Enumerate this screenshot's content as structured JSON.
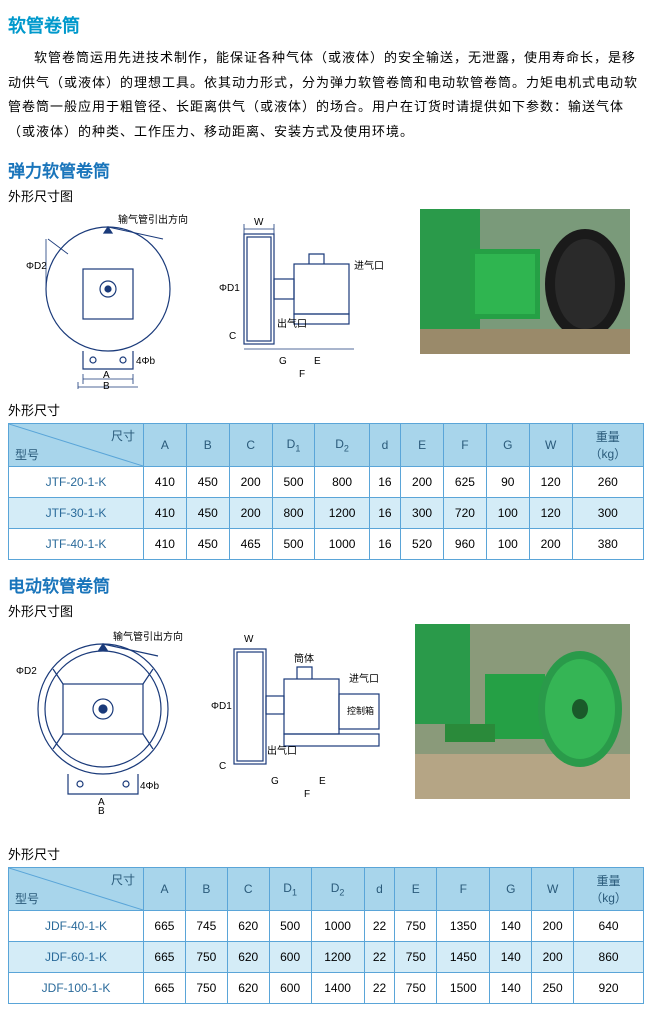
{
  "title": "软管卷筒",
  "intro": "软管卷筒运用先进技术制作，能保证各种气体（或液体）的安全输送，无泄露，使用寿命长，是移动供气（或液体）的理想工具。依其动力形式，分为弹力软管卷筒和电动软管卷筒。力矩电机式电动软管卷筒一般应用于粗管径、长距离供气（或液体）的场合。用户在订货时请提供如下参数：输送气体（或液体）的种类、工作压力、移动距离、安装方式及使用环境。",
  "section1_title": "弹力软管卷筒",
  "section2_title": "电动软管卷筒",
  "dim_diagram_label": "外形尺寸图",
  "dim_table_label": "外形尺寸",
  "table_header_top": "尺寸",
  "table_header_bot": "型号",
  "columns": [
    "A",
    "B",
    "C",
    "D₁",
    "D₂",
    "d",
    "E",
    "F",
    "G",
    "W",
    "重量（kg）"
  ],
  "diagram_labels": {
    "front_annot": "输气管引出方向",
    "phi_d2": "ΦD2",
    "phi_d1": "ΦD1",
    "A": "A",
    "B": "B",
    "C": "C",
    "E": "E",
    "F": "F",
    "G": "G",
    "W": "W",
    "hole": "4Φb",
    "inlet": "进气口",
    "outlet": "出气口",
    "body": "筒体",
    "ctrl": "控制箱"
  },
  "table1_rows": [
    {
      "model": "JTF-20-1-K",
      "v": [
        "410",
        "450",
        "200",
        "500",
        "800",
        "16",
        "200",
        "625",
        "90",
        "120",
        "260"
      ],
      "hl": false
    },
    {
      "model": "JTF-30-1-K",
      "v": [
        "410",
        "450",
        "200",
        "800",
        "1200",
        "16",
        "300",
        "720",
        "100",
        "120",
        "300"
      ],
      "hl": true
    },
    {
      "model": "JTF-40-1-K",
      "v": [
        "410",
        "450",
        "465",
        "500",
        "1000",
        "16",
        "520",
        "960",
        "100",
        "200",
        "380"
      ],
      "hl": false
    }
  ],
  "table2_rows": [
    {
      "model": "JDF-40-1-K",
      "v": [
        "665",
        "745",
        "620",
        "500",
        "1000",
        "22",
        "750",
        "1350",
        "140",
        "200",
        "640"
      ],
      "hl": false
    },
    {
      "model": "JDF-60-1-K",
      "v": [
        "665",
        "750",
        "620",
        "600",
        "1200",
        "22",
        "750",
        "1450",
        "140",
        "200",
        "860"
      ],
      "hl": true
    },
    {
      "model": "JDF-100-1-K",
      "v": [
        "665",
        "750",
        "620",
        "600",
        "1400",
        "22",
        "750",
        "1500",
        "140",
        "250",
        "920"
      ],
      "hl": false
    }
  ],
  "colors": {
    "title": "#0099cc",
    "section": "#1a75bb",
    "border": "#5aa5d8",
    "header_bg": "#a8d5eb",
    "hl_bg": "#d4ecf7",
    "diagram_line": "#1a3a7a",
    "machine_green": "#2a9a4a",
    "machine_dark": "#333333"
  }
}
